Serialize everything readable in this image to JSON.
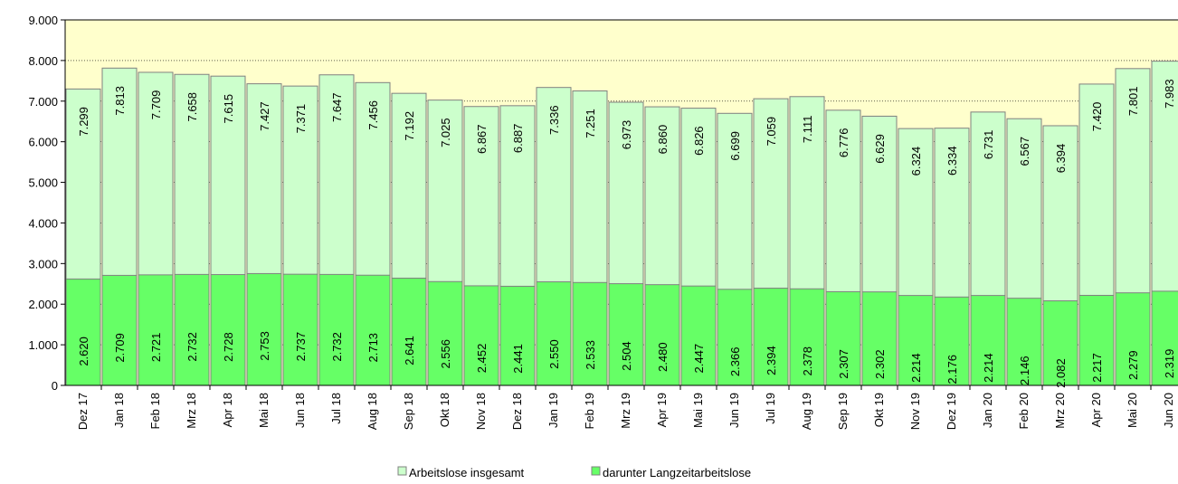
{
  "chart_data": {
    "type": "bar",
    "overlap": true,
    "categories": [
      "Dez 17",
      "Jan 18",
      "Feb 18",
      "Mrz 18",
      "Apr 18",
      "Mai 18",
      "Jun 18",
      "Jul 18",
      "Aug 18",
      "Sep 18",
      "Okt 18",
      "Nov 18",
      "Dez 18",
      "Jan 19",
      "Feb 19",
      "Mrz 19",
      "Apr 19",
      "Mai 19",
      "Jun 19",
      "Jul 19",
      "Aug 19",
      "Sep 19",
      "Okt 19",
      "Nov 19",
      "Dez 19",
      "Jan 20",
      "Feb 20",
      "Mrz 20",
      "Apr 20",
      "Mai 20",
      "Jun 20"
    ],
    "series": [
      {
        "name": "Arbeitslose insgesamt",
        "color": "#ccffcc",
        "values": [
          7299,
          7813,
          7709,
          7658,
          7615,
          7427,
          7371,
          7647,
          7456,
          7192,
          7025,
          6867,
          6887,
          7336,
          7251,
          6973,
          6860,
          6826,
          6699,
          7059,
          7111,
          6776,
          6629,
          6324,
          6334,
          6731,
          6567,
          6394,
          7420,
          7801,
          7983
        ],
        "value_labels": [
          "7.299",
          "7.813",
          "7.709",
          "7.658",
          "7.615",
          "7.427",
          "7.371",
          "7.647",
          "7.456",
          "7.192",
          "7.025",
          "6.867",
          "6.887",
          "7.336",
          "7.251",
          "6.973",
          "6.860",
          "6.826",
          "6.699",
          "7.059",
          "7.111",
          "6.776",
          "6.629",
          "6.324",
          "6.334",
          "6.731",
          "6.567",
          "6.394",
          "7.420",
          "7.801",
          "7.983"
        ]
      },
      {
        "name": "darunter Langzeitarbeitslose",
        "color": "#66ff66",
        "values": [
          2620,
          2709,
          2721,
          2732,
          2728,
          2753,
          2737,
          2732,
          2713,
          2641,
          2556,
          2452,
          2441,
          2550,
          2533,
          2504,
          2480,
          2447,
          2366,
          2394,
          2378,
          2307,
          2302,
          2214,
          2176,
          2214,
          2146,
          2082,
          2217,
          2279,
          2319
        ],
        "value_labels": [
          "2.620",
          "2.709",
          "2.721",
          "2.732",
          "2.728",
          "2.753",
          "2.737",
          "2.732",
          "2.713",
          "2.641",
          "2.556",
          "2.452",
          "2.441",
          "2.550",
          "2.533",
          "2.504",
          "2.480",
          "2.447",
          "2.366",
          "2.394",
          "2.378",
          "2.307",
          "2.302",
          "2.214",
          "2.176",
          "2.214",
          "2.146",
          "2.082",
          "2.217",
          "2.279",
          "2.319"
        ]
      }
    ],
    "ylim": [
      0,
      9000
    ],
    "yticks": [
      {
        "value": 0,
        "label": "0"
      },
      {
        "value": 1000,
        "label": "1.000"
      },
      {
        "value": 2000,
        "label": "2.000"
      },
      {
        "value": 3000,
        "label": "3.000"
      },
      {
        "value": 4000,
        "label": "4.000"
      },
      {
        "value": 5000,
        "label": "5.000"
      },
      {
        "value": 6000,
        "label": "6.000"
      },
      {
        "value": 7000,
        "label": "7.000"
      },
      {
        "value": 8000,
        "label": "8.000"
      },
      {
        "value": 9000,
        "label": "9.000"
      }
    ],
    "grid": true,
    "background": "#ffffcc",
    "legend": "bottom"
  }
}
